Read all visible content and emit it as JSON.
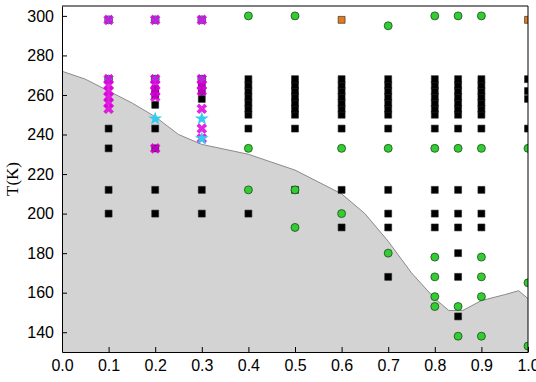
{
  "chart_data": {
    "type": "scatter",
    "y_label": "T(K)",
    "xlim": [
      0,
      1
    ],
    "ylim": [
      130,
      305
    ],
    "xticks": [
      {
        "value": 0,
        "label": "0.0"
      },
      {
        "value": 0.1,
        "label": "0.1"
      },
      {
        "value": 0.2,
        "label": "0.2"
      },
      {
        "value": 0.3,
        "label": "0.3"
      },
      {
        "value": 0.4,
        "label": "0.4"
      },
      {
        "value": 0.5,
        "label": "0.5"
      },
      {
        "value": 0.6,
        "label": "0.6"
      },
      {
        "value": 0.7,
        "label": "0.7"
      },
      {
        "value": 0.8,
        "label": "0.8"
      },
      {
        "value": 0.9,
        "label": "0.9"
      },
      {
        "value": 1,
        "label": "1.0"
      }
    ],
    "yticks": [
      140,
      160,
      180,
      200,
      220,
      240,
      260,
      280,
      300
    ],
    "series": [
      {
        "type": "area",
        "color": "#d3d3d3",
        "x": [
          0,
          0.05,
          0.1,
          0.15,
          0.2,
          0.25,
          0.3,
          0.4,
          0.5,
          0.6,
          0.65,
          0.7,
          0.75,
          0.8,
          0.83,
          0.86,
          0.9,
          0.95,
          0.98,
          1
        ],
        "values": [
          272,
          268,
          262,
          256,
          249,
          240,
          235,
          230,
          222,
          210,
          200,
          186,
          170,
          157,
          151,
          151,
          156,
          159,
          161,
          157
        ]
      },
      {
        "marker": "square",
        "color": "#000000",
        "x": [
          0.1,
          0.1,
          0.1,
          0.1,
          0.2,
          0.2,
          0.2,
          0.2,
          0.2,
          0.2,
          0.2,
          0.2,
          0.3,
          0.3,
          0.3,
          0.3,
          0.3,
          0.3,
          0.4,
          0.4,
          0.4,
          0.4,
          0.4,
          0.4,
          0.4,
          0.4,
          0.4,
          0.5,
          0.5,
          0.5,
          0.5,
          0.5,
          0.5,
          0.5,
          0.5,
          0.5,
          0.6,
          0.6,
          0.6,
          0.6,
          0.6,
          0.6,
          0.6,
          0.6,
          0.6,
          0.6,
          0.7,
          0.7,
          0.7,
          0.7,
          0.7,
          0.7,
          0.7,
          0.7,
          0.7,
          0.7,
          0.7,
          0.7,
          0.8,
          0.8,
          0.8,
          0.8,
          0.8,
          0.8,
          0.8,
          0.8,
          0.8,
          0.8,
          0.8,
          0.85,
          0.85,
          0.85,
          0.85,
          0.85,
          0.85,
          0.85,
          0.85,
          0.85,
          0.85,
          0.85,
          0.85,
          0.85,
          0.85,
          0.9,
          0.9,
          0.9,
          0.9,
          0.9,
          0.9,
          0.9,
          0.9,
          0.9,
          0.9,
          0.9,
          1,
          1,
          1,
          1
        ],
        "values": [
          200,
          212,
          233,
          243,
          200,
          212,
          233,
          243,
          255,
          260,
          263,
          268,
          200,
          212,
          258,
          262,
          265,
          268,
          200,
          243,
          250,
          253,
          256,
          259,
          262,
          265,
          268,
          212,
          243,
          250,
          253,
          256,
          259,
          262,
          265,
          268,
          193,
          212,
          243,
          250,
          253,
          256,
          259,
          262,
          265,
          268,
          168,
          193,
          200,
          212,
          243,
          250,
          253,
          256,
          259,
          262,
          265,
          268,
          193,
          200,
          212,
          243,
          250,
          253,
          256,
          259,
          262,
          265,
          268,
          148,
          168,
          180,
          193,
          200,
          212,
          243,
          250,
          253,
          256,
          259,
          262,
          265,
          268,
          193,
          200,
          212,
          243,
          250,
          253,
          256,
          259,
          262,
          265,
          268,
          243,
          258,
          262,
          268
        ]
      },
      {
        "marker": "circle",
        "color": "#33cc33",
        "x": [
          0.4,
          0.4,
          0.4,
          0.5,
          0.5,
          0.5,
          0.6,
          0.6,
          0.7,
          0.7,
          0.7,
          0.8,
          0.8,
          0.8,
          0.8,
          0.8,
          0.8,
          0.85,
          0.85,
          0.85,
          0.85,
          0.9,
          0.9,
          0.9,
          0.9,
          0.9,
          0.9,
          1,
          1,
          1
        ],
        "values": [
          300,
          233,
          212,
          300,
          212,
          193,
          233,
          200,
          295,
          233,
          180,
          300,
          233,
          178,
          168,
          158,
          153,
          300,
          233,
          153,
          138,
          300,
          233,
          178,
          168,
          158,
          138,
          233,
          165,
          133
        ]
      },
      {
        "marker": "square",
        "color": "#e07b20",
        "x": [
          0.6,
          1
        ],
        "values": [
          298,
          298
        ]
      },
      {
        "marker": "circle",
        "color": "#33ccee",
        "x": [
          0.1,
          0.1,
          0.2,
          0.2,
          0.3,
          0.3
        ],
        "values": [
          298,
          268,
          298,
          268,
          298,
          268
        ]
      },
      {
        "marker": "x",
        "color": "#dd00dd",
        "x": [
          0.1,
          0.1,
          0.1,
          0.1,
          0.1,
          0.1,
          0.1,
          0.2,
          0.2,
          0.2,
          0.2,
          0.2,
          0.2,
          0.3,
          0.3,
          0.3,
          0.3,
          0.3,
          0.3,
          0.3
        ],
        "values": [
          298,
          268,
          265,
          262,
          259,
          256,
          253,
          298,
          268,
          265,
          262,
          259,
          233,
          298,
          268,
          265,
          262,
          253,
          243,
          238
        ]
      },
      {
        "marker": "star",
        "color": "#33ccee",
        "x": [
          0.2,
          0.3,
          0.3
        ],
        "values": [
          248,
          238,
          248
        ]
      }
    ]
  }
}
